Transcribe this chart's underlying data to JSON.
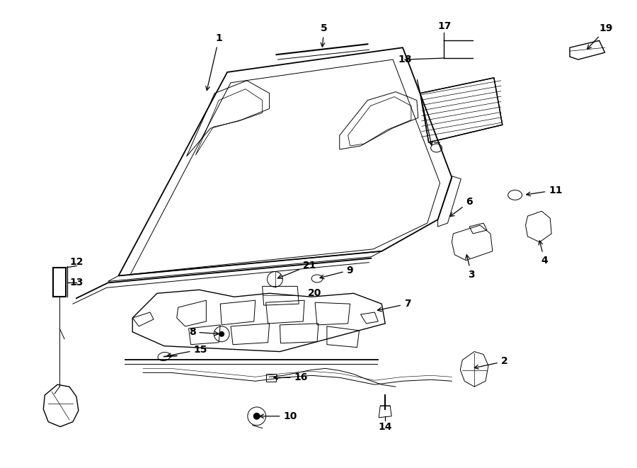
{
  "bg_color": "#ffffff",
  "lc": "#000000",
  "fig_w": 9.0,
  "fig_h": 6.61,
  "dpi": 100,
  "arrow_props": {
    "arrowstyle": "->",
    "lw": 0.8,
    "color": "#000000"
  },
  "font_size": 10,
  "font_size_sm": 9
}
